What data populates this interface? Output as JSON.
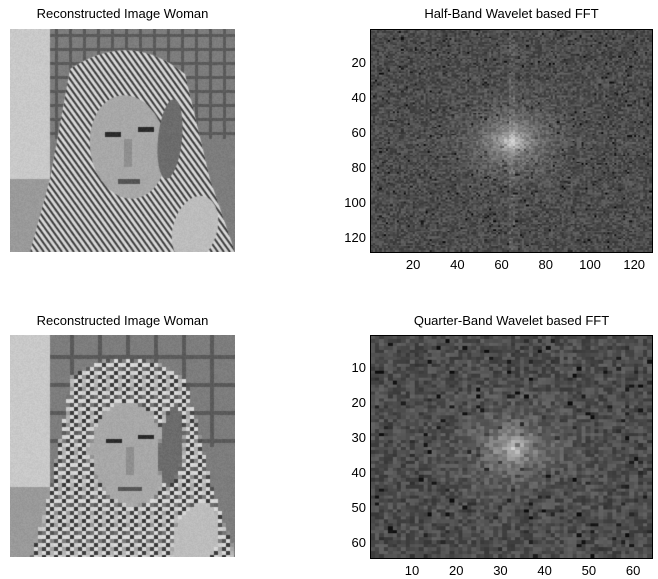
{
  "panels": {
    "top_left": {
      "title": "Reconstructed Image Woman"
    },
    "top_right": {
      "title": "Half-Band Wavelet based FFT"
    },
    "bottom_left": {
      "title": "Reconstructed Image Woman"
    },
    "bottom_right": {
      "title": "Quarter-Band Wavelet based FFT"
    }
  },
  "chart_data": [
    {
      "type": "heatmap",
      "title": "Half-Band Wavelet based FFT",
      "size": [
        128,
        128
      ],
      "xlim": [
        0.5,
        128.5
      ],
      "ylim": [
        0.5,
        128.5
      ],
      "y_reversed": true,
      "xticks": [
        "20",
        "40",
        "60",
        "80",
        "100",
        "120"
      ],
      "yticks": [
        "20",
        "40",
        "60",
        "80",
        "100",
        "120"
      ],
      "colormap": "gray",
      "peak_center": [
        65,
        65
      ]
    },
    {
      "type": "heatmap",
      "title": "Quarter-Band Wavelet based FFT",
      "size": [
        64,
        64
      ],
      "xlim": [
        0.5,
        64.5
      ],
      "ylim": [
        0.5,
        64.5
      ],
      "y_reversed": true,
      "xticks": [
        "10",
        "20",
        "30",
        "40",
        "50",
        "60"
      ],
      "yticks": [
        "10",
        "20",
        "30",
        "40",
        "50",
        "60"
      ],
      "colormap": "gray",
      "peak_center": [
        33,
        33
      ]
    }
  ]
}
